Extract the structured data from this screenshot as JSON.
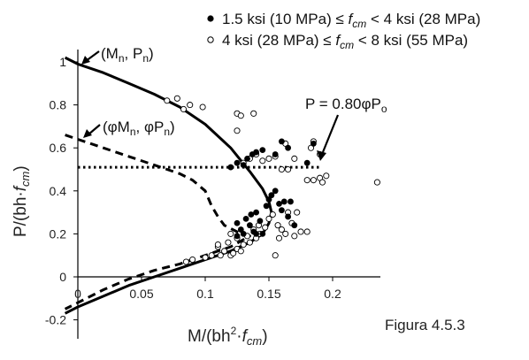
{
  "chart_data": {
    "type": "scatter",
    "xlim": [
      0,
      0.24
    ],
    "ylim": [
      -0.25,
      1.1
    ],
    "x_ticks": [
      "0",
      "0.05",
      "0.1",
      "0.15",
      "0.2"
    ],
    "y_ticks": [
      "-0.2",
      "0",
      "0.2",
      "0.4",
      "0.6",
      "0.8",
      "1"
    ],
    "legend_placement": "top-right",
    "grid": false,
    "series": [
      {
        "name": "1.5 ksi (10 MPa) ≤ fcm < 4 ksi (28 MPa)",
        "kind": "scatter-filled",
        "points": [
          [
            0.12,
            0.51
          ],
          [
            0.125,
            0.53
          ],
          [
            0.13,
            0.52
          ],
          [
            0.133,
            0.55
          ],
          [
            0.137,
            0.57
          ],
          [
            0.14,
            0.58
          ],
          [
            0.145,
            0.59
          ],
          [
            0.155,
            0.57
          ],
          [
            0.16,
            0.63
          ],
          [
            0.165,
            0.6
          ],
          [
            0.18,
            0.53
          ],
          [
            0.185,
            0.62
          ],
          [
            0.125,
            0.25
          ],
          [
            0.128,
            0.22
          ],
          [
            0.132,
            0.27
          ],
          [
            0.136,
            0.29
          ],
          [
            0.14,
            0.3
          ],
          [
            0.143,
            0.26
          ],
          [
            0.145,
            0.2
          ],
          [
            0.148,
            0.33
          ],
          [
            0.15,
            0.36
          ],
          [
            0.152,
            0.38
          ],
          [
            0.155,
            0.4
          ],
          [
            0.158,
            0.34
          ],
          [
            0.16,
            0.31
          ],
          [
            0.162,
            0.35
          ],
          [
            0.165,
            0.28
          ],
          [
            0.13,
            0.2
          ],
          [
            0.14,
            0.2
          ],
          [
            0.135,
            0.24
          ],
          [
            0.17,
            0.24
          ],
          [
            0.125,
            0.19
          ],
          [
            0.138,
            0.21
          ],
          [
            0.167,
            0.35
          ]
        ]
      },
      {
        "name": "4 ksi (28 MPa) ≤ fcm < 8 ksi (55 MPa)",
        "kind": "scatter-open",
        "points": [
          [
            0.07,
            0.82
          ],
          [
            0.078,
            0.83
          ],
          [
            0.088,
            0.8
          ],
          [
            0.098,
            0.79
          ],
          [
            0.125,
            0.76
          ],
          [
            0.128,
            0.75
          ],
          [
            0.138,
            0.76
          ],
          [
            0.083,
            0.78
          ],
          [
            0.125,
            0.68
          ],
          [
            0.13,
            0.53
          ],
          [
            0.135,
            0.55
          ],
          [
            0.14,
            0.57
          ],
          [
            0.145,
            0.54
          ],
          [
            0.15,
            0.55
          ],
          [
            0.155,
            0.56
          ],
          [
            0.16,
            0.5
          ],
          [
            0.165,
            0.5
          ],
          [
            0.163,
            0.62
          ],
          [
            0.17,
            0.55
          ],
          [
            0.183,
            0.6
          ],
          [
            0.185,
            0.63
          ],
          [
            0.185,
            0.45
          ],
          [
            0.19,
            0.46
          ],
          [
            0.192,
            0.44
          ],
          [
            0.195,
            0.47
          ],
          [
            0.18,
            0.45
          ],
          [
            0.19,
            0.57
          ],
          [
            0.235,
            0.44
          ],
          [
            0.18,
            0.21
          ],
          [
            0.12,
            0.2
          ],
          [
            0.125,
            0.18
          ],
          [
            0.13,
            0.15
          ],
          [
            0.133,
            0.19
          ],
          [
            0.135,
            0.16
          ],
          [
            0.14,
            0.18
          ],
          [
            0.143,
            0.2
          ],
          [
            0.147,
            0.23
          ],
          [
            0.15,
            0.27
          ],
          [
            0.153,
            0.29
          ],
          [
            0.157,
            0.24
          ],
          [
            0.16,
            0.22
          ],
          [
            0.163,
            0.2
          ],
          [
            0.165,
            0.3
          ],
          [
            0.168,
            0.25
          ],
          [
            0.17,
            0.19
          ],
          [
            0.172,
            0.3
          ],
          [
            0.175,
            0.21
          ],
          [
            0.11,
            0.14
          ],
          [
            0.115,
            0.12
          ],
          [
            0.12,
            0.1
          ],
          [
            0.122,
            0.11
          ],
          [
            0.125,
            0.13
          ],
          [
            0.128,
            0.12
          ],
          [
            0.085,
            0.07
          ],
          [
            0.09,
            0.08
          ],
          [
            0.1,
            0.09
          ],
          [
            0.105,
            0.1
          ],
          [
            0.11,
            0.15
          ],
          [
            0.112,
            0.1
          ],
          [
            0.118,
            0.16
          ],
          [
            0.138,
            0.22
          ],
          [
            0.142,
            0.24
          ],
          [
            0.155,
            0.1
          ],
          [
            0.158,
            0.18
          ]
        ]
      },
      {
        "name": "(Mn, Pn)",
        "kind": "line-solid",
        "points": [
          [
            -0.01,
            1.02
          ],
          [
            0,
            0.99
          ],
          [
            0.02,
            0.95
          ],
          [
            0.04,
            0.9
          ],
          [
            0.06,
            0.85
          ],
          [
            0.08,
            0.79
          ],
          [
            0.1,
            0.71
          ],
          [
            0.12,
            0.6
          ],
          [
            0.135,
            0.49
          ],
          [
            0.145,
            0.41
          ],
          [
            0.15,
            0.35
          ],
          [
            0.152,
            0.3
          ],
          [
            0.15,
            0.25
          ],
          [
            0.145,
            0.2
          ],
          [
            0.135,
            0.16
          ],
          [
            0.12,
            0.12
          ],
          [
            0.1,
            0.08
          ],
          [
            0.08,
            0.04
          ],
          [
            0.06,
            0.0
          ],
          [
            0.04,
            -0.04
          ],
          [
            0.02,
            -0.09
          ],
          [
            0,
            -0.14
          ],
          [
            -0.01,
            -0.17
          ]
        ]
      },
      {
        "name": "(φMn, φPn)",
        "kind": "line-dashed",
        "points": [
          [
            -0.01,
            0.66
          ],
          [
            0,
            0.64
          ],
          [
            0.02,
            0.6
          ],
          [
            0.04,
            0.56
          ],
          [
            0.06,
            0.52
          ],
          [
            0.08,
            0.48
          ],
          [
            0.09,
            0.45
          ],
          [
            0.1,
            0.4
          ],
          [
            0.105,
            0.33
          ],
          [
            0.11,
            0.28
          ],
          [
            0.115,
            0.24
          ],
          [
            0.125,
            0.21
          ],
          [
            0.135,
            0.19
          ],
          [
            0.12,
            0.14
          ],
          [
            0.1,
            0.1
          ],
          [
            0.08,
            0.06
          ],
          [
            0.06,
            0.03
          ],
          [
            0.04,
            -0.01
          ],
          [
            0.02,
            -0.06
          ],
          [
            0,
            -0.12
          ],
          [
            -0.01,
            -0.15
          ]
        ]
      },
      {
        "name": "P = 0.80φPo",
        "kind": "line-dotted",
        "points": [
          [
            0,
            0.51
          ],
          [
            0.19,
            0.51
          ]
        ]
      }
    ],
    "legend": [
      "1.5 ksi (10 MPa) ≤ fcm < 4 ksi (28 MPa)",
      "4 ksi (28 MPa) ≤ fcm < 8 ksi (55 MPa)"
    ],
    "annotations": [
      {
        "label": "(Mn, Pn)",
        "points_to": [
          0.0,
          0.99
        ]
      },
      {
        "label": "(φMn, φPn)",
        "points_to": [
          0.0,
          0.64
        ]
      },
      {
        "label": "P = 0.80φPo",
        "points_to": [
          0.19,
          0.51
        ]
      }
    ],
    "xlabel": "M/(bh²·fcm)",
    "ylabel": "P/(bh·fcm)",
    "caption": "Figura 4.5.3"
  }
}
